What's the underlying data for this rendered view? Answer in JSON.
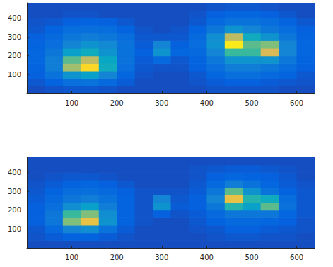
{
  "chart_data": [
    {
      "type": "heatmap",
      "grid": false,
      "xlim": [
        0,
        640
      ],
      "ylim": [
        0,
        480
      ],
      "xticks": [
        100,
        200,
        300,
        400,
        500,
        600
      ],
      "yticks": [
        100,
        200,
        300,
        400
      ],
      "zlim": [
        0,
        1
      ],
      "x": [
        20,
        60,
        100,
        140,
        180,
        220,
        260,
        300,
        340,
        380,
        420,
        460,
        500,
        540,
        580,
        620
      ],
      "y": [
        20,
        60,
        100,
        140,
        180,
        220,
        260,
        300,
        340,
        380,
        420,
        460
      ],
      "values": [
        [
          0.08,
          0.09,
          0.1,
          0.1,
          0.09,
          0.08,
          0.08,
          0.08,
          0.08,
          0.08,
          0.09,
          0.09,
          0.09,
          0.09,
          0.08,
          0.08
        ],
        [
          0.1,
          0.13,
          0.17,
          0.18,
          0.15,
          0.11,
          0.08,
          0.08,
          0.08,
          0.09,
          0.11,
          0.12,
          0.12,
          0.11,
          0.1,
          0.09
        ],
        [
          0.12,
          0.18,
          0.3,
          0.35,
          0.25,
          0.14,
          0.09,
          0.08,
          0.08,
          0.1,
          0.14,
          0.17,
          0.17,
          0.15,
          0.13,
          0.1
        ],
        [
          0.13,
          0.22,
          0.65,
          0.9,
          0.4,
          0.17,
          0.1,
          0.09,
          0.09,
          0.12,
          0.17,
          0.22,
          0.22,
          0.2,
          0.16,
          0.12
        ],
        [
          0.14,
          0.22,
          0.55,
          0.7,
          0.38,
          0.18,
          0.11,
          0.15,
          0.1,
          0.13,
          0.2,
          0.3,
          0.3,
          0.3,
          0.2,
          0.13
        ],
        [
          0.14,
          0.2,
          0.35,
          0.4,
          0.3,
          0.18,
          0.12,
          0.3,
          0.14,
          0.15,
          0.25,
          0.5,
          0.5,
          0.75,
          0.25,
          0.14
        ],
        [
          0.13,
          0.17,
          0.25,
          0.3,
          0.26,
          0.18,
          0.11,
          0.25,
          0.12,
          0.16,
          0.3,
          0.95,
          0.55,
          0.6,
          0.25,
          0.14
        ],
        [
          0.12,
          0.15,
          0.2,
          0.22,
          0.2,
          0.16,
          0.1,
          0.1,
          0.1,
          0.15,
          0.28,
          0.7,
          0.4,
          0.3,
          0.2,
          0.13
        ],
        [
          0.1,
          0.13,
          0.16,
          0.17,
          0.16,
          0.13,
          0.09,
          0.08,
          0.09,
          0.13,
          0.2,
          0.3,
          0.25,
          0.2,
          0.16,
          0.12
        ],
        [
          0.09,
          0.1,
          0.12,
          0.13,
          0.12,
          0.1,
          0.08,
          0.08,
          0.08,
          0.1,
          0.15,
          0.18,
          0.18,
          0.16,
          0.13,
          0.1
        ],
        [
          0.08,
          0.08,
          0.09,
          0.09,
          0.08,
          0.08,
          0.08,
          0.08,
          0.08,
          0.09,
          0.12,
          0.14,
          0.14,
          0.12,
          0.1,
          0.08
        ],
        [
          0.08,
          0.08,
          0.08,
          0.08,
          0.08,
          0.08,
          0.08,
          0.08,
          0.08,
          0.08,
          0.09,
          0.1,
          0.1,
          0.09,
          0.08,
          0.08
        ]
      ]
    },
    {
      "type": "heatmap",
      "grid": false,
      "xlim": [
        0,
        640
      ],
      "ylim": [
        0,
        480
      ],
      "xticks": [
        100,
        200,
        300,
        400,
        500,
        600
      ],
      "yticks": [
        100,
        200,
        300,
        400
      ],
      "zlim": [
        0,
        1
      ],
      "x": [
        20,
        60,
        100,
        140,
        180,
        220,
        260,
        300,
        340,
        380,
        420,
        460,
        500,
        540,
        580,
        620
      ],
      "y": [
        20,
        60,
        100,
        140,
        180,
        220,
        260,
        300,
        340,
        380,
        420,
        460
      ],
      "values": [
        [
          0.08,
          0.08,
          0.08,
          0.08,
          0.08,
          0.08,
          0.08,
          0.08,
          0.08,
          0.08,
          0.08,
          0.08,
          0.08,
          0.08,
          0.08,
          0.08
        ],
        [
          0.09,
          0.11,
          0.13,
          0.13,
          0.11,
          0.09,
          0.08,
          0.08,
          0.08,
          0.08,
          0.09,
          0.1,
          0.1,
          0.09,
          0.09,
          0.08
        ],
        [
          0.1,
          0.15,
          0.25,
          0.28,
          0.18,
          0.11,
          0.08,
          0.08,
          0.08,
          0.09,
          0.1,
          0.12,
          0.12,
          0.11,
          0.1,
          0.09
        ],
        [
          0.12,
          0.2,
          0.6,
          0.8,
          0.3,
          0.13,
          0.09,
          0.08,
          0.08,
          0.1,
          0.13,
          0.15,
          0.15,
          0.14,
          0.12,
          0.09
        ],
        [
          0.12,
          0.2,
          0.5,
          0.6,
          0.28,
          0.13,
          0.09,
          0.12,
          0.09,
          0.11,
          0.15,
          0.2,
          0.2,
          0.2,
          0.14,
          0.1
        ],
        [
          0.12,
          0.17,
          0.28,
          0.35,
          0.22,
          0.13,
          0.09,
          0.3,
          0.11,
          0.12,
          0.2,
          0.45,
          0.35,
          0.55,
          0.18,
          0.1
        ],
        [
          0.11,
          0.15,
          0.2,
          0.22,
          0.18,
          0.13,
          0.09,
          0.25,
          0.1,
          0.12,
          0.25,
          0.8,
          0.45,
          0.4,
          0.16,
          0.1
        ],
        [
          0.1,
          0.13,
          0.16,
          0.17,
          0.15,
          0.12,
          0.09,
          0.09,
          0.09,
          0.11,
          0.2,
          0.55,
          0.3,
          0.18,
          0.13,
          0.1
        ],
        [
          0.09,
          0.11,
          0.13,
          0.14,
          0.12,
          0.1,
          0.08,
          0.08,
          0.08,
          0.1,
          0.15,
          0.22,
          0.18,
          0.14,
          0.11,
          0.09
        ],
        [
          0.08,
          0.09,
          0.1,
          0.1,
          0.09,
          0.08,
          0.08,
          0.08,
          0.08,
          0.09,
          0.12,
          0.14,
          0.13,
          0.12,
          0.1,
          0.08
        ],
        [
          0.08,
          0.08,
          0.08,
          0.08,
          0.08,
          0.08,
          0.08,
          0.08,
          0.08,
          0.09,
          0.1,
          0.11,
          0.11,
          0.1,
          0.09,
          0.08
        ],
        [
          0.08,
          0.08,
          0.08,
          0.08,
          0.08,
          0.08,
          0.08,
          0.08,
          0.08,
          0.08,
          0.08,
          0.08,
          0.08,
          0.08,
          0.08,
          0.08
        ]
      ]
    }
  ]
}
